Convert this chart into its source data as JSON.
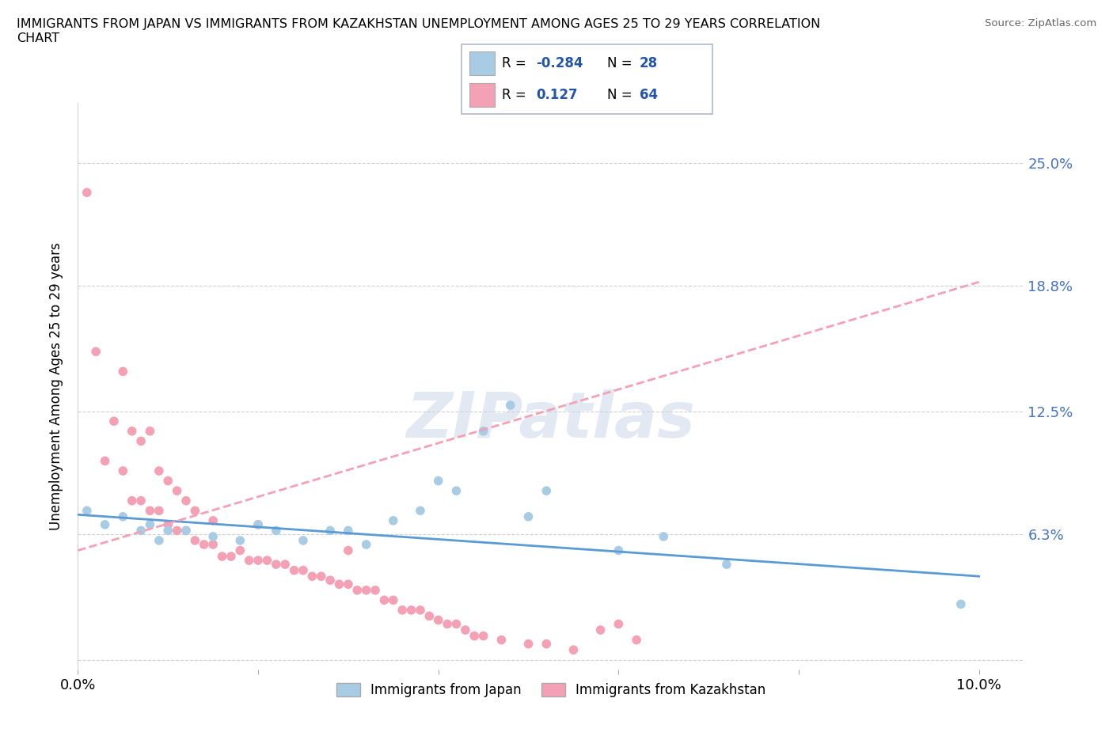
{
  "title": "IMMIGRANTS FROM JAPAN VS IMMIGRANTS FROM KAZAKHSTAN UNEMPLOYMENT AMONG AGES 25 TO 29 YEARS CORRELATION\nCHART",
  "source": "Source: ZipAtlas.com",
  "ylabel": "Unemployment Among Ages 25 to 29 years",
  "xlim": [
    0.0,
    0.105
  ],
  "ylim": [
    -0.005,
    0.28
  ],
  "yticks": [
    0.0,
    0.063,
    0.125,
    0.188,
    0.25
  ],
  "ytick_labels": [
    "",
    "6.3%",
    "12.5%",
    "18.8%",
    "25.0%"
  ],
  "xticks": [
    0.0,
    0.02,
    0.04,
    0.06,
    0.08,
    0.1
  ],
  "xtick_labels": [
    "0.0%",
    "",
    "",
    "",
    "",
    "10.0%"
  ],
  "watermark": "ZIPatlas",
  "color_japan": "#a8cce4",
  "color_kazakhstan": "#f4a0b5",
  "trendline_japan_color": "#5b9bd5",
  "trendline_kazakhstan_color": "#f4a0b5",
  "japan_x": [
    0.001,
    0.003,
    0.005,
    0.007,
    0.008,
    0.009,
    0.01,
    0.012,
    0.015,
    0.018,
    0.02,
    0.022,
    0.025,
    0.028,
    0.03,
    0.032,
    0.035,
    0.038,
    0.04,
    0.042,
    0.045,
    0.048,
    0.05,
    0.052,
    0.06,
    0.065,
    0.072,
    0.098
  ],
  "japan_y": [
    0.075,
    0.068,
    0.072,
    0.065,
    0.068,
    0.06,
    0.065,
    0.065,
    0.062,
    0.06,
    0.068,
    0.065,
    0.06,
    0.065,
    0.065,
    0.058,
    0.07,
    0.075,
    0.09,
    0.085,
    0.115,
    0.128,
    0.072,
    0.085,
    0.055,
    0.062,
    0.048,
    0.028
  ],
  "kazakhstan_x": [
    0.001,
    0.002,
    0.003,
    0.004,
    0.005,
    0.005,
    0.006,
    0.006,
    0.007,
    0.007,
    0.008,
    0.008,
    0.009,
    0.009,
    0.01,
    0.01,
    0.011,
    0.011,
    0.012,
    0.012,
    0.013,
    0.013,
    0.014,
    0.015,
    0.015,
    0.016,
    0.017,
    0.018,
    0.019,
    0.02,
    0.02,
    0.021,
    0.022,
    0.023,
    0.024,
    0.025,
    0.026,
    0.027,
    0.028,
    0.029,
    0.03,
    0.03,
    0.031,
    0.032,
    0.033,
    0.034,
    0.035,
    0.036,
    0.037,
    0.038,
    0.039,
    0.04,
    0.041,
    0.042,
    0.043,
    0.044,
    0.045,
    0.047,
    0.05,
    0.052,
    0.055,
    0.058,
    0.06,
    0.062
  ],
  "kazakhstan_y": [
    0.235,
    0.155,
    0.1,
    0.12,
    0.095,
    0.145,
    0.08,
    0.115,
    0.08,
    0.11,
    0.075,
    0.115,
    0.075,
    0.095,
    0.068,
    0.09,
    0.065,
    0.085,
    0.065,
    0.08,
    0.06,
    0.075,
    0.058,
    0.058,
    0.07,
    0.052,
    0.052,
    0.055,
    0.05,
    0.05,
    0.068,
    0.05,
    0.048,
    0.048,
    0.045,
    0.045,
    0.042,
    0.042,
    0.04,
    0.038,
    0.038,
    0.055,
    0.035,
    0.035,
    0.035,
    0.03,
    0.03,
    0.025,
    0.025,
    0.025,
    0.022,
    0.02,
    0.018,
    0.018,
    0.015,
    0.012,
    0.012,
    0.01,
    0.008,
    0.008,
    0.005,
    0.015,
    0.018,
    0.01
  ],
  "jp_trend_x0": 0.0,
  "jp_trend_x1": 0.1,
  "jp_trend_y0": 0.073,
  "jp_trend_y1": 0.042,
  "kz_trend_x0": 0.0,
  "kz_trend_x1": 0.1,
  "kz_trend_y0": 0.055,
  "kz_trend_y1": 0.19
}
